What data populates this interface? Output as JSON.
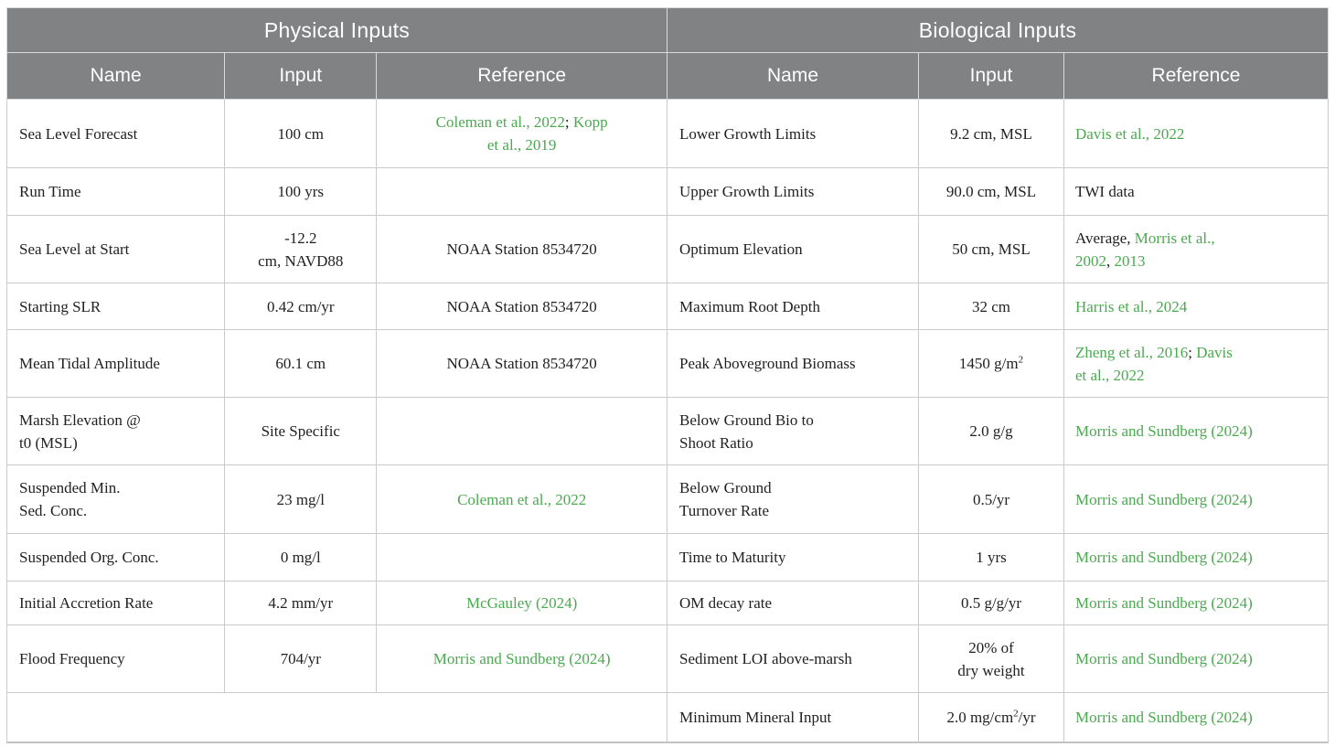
{
  "colors": {
    "header_bg": "#808283",
    "header_text": "#ffffff",
    "citation_green": "#4ba950",
    "body_text": "#212121",
    "border": "#cbcbcb"
  },
  "tables": [
    {
      "title": "Physical Inputs",
      "columns": [
        "Name",
        "Input",
        "Reference"
      ],
      "rows": [
        {
          "name": [
            {
              "t": "Sea Level Forecast"
            }
          ],
          "input": [
            {
              "t": "100 cm"
            }
          ],
          "ref": [
            {
              "t": "Coleman et al., 2022",
              "link": true
            },
            {
              "t": "; "
            },
            {
              "t": "Kopp",
              "link": true
            },
            {
              "br": true
            },
            {
              "t": "et al., 2019",
              "link": true
            }
          ]
        },
        {
          "name": [
            {
              "t": "Run Time"
            }
          ],
          "input": [
            {
              "t": "100 yrs"
            }
          ],
          "ref": []
        },
        {
          "name": [
            {
              "t": "Sea Level at Start"
            }
          ],
          "input": [
            {
              "t": "-12.2"
            },
            {
              "br": true
            },
            {
              "t": "cm, NAVD88"
            }
          ],
          "ref": [
            {
              "t": "NOAA Station 8534720"
            }
          ]
        },
        {
          "name": [
            {
              "t": "Starting SLR"
            }
          ],
          "input": [
            {
              "t": "0.42 cm/yr"
            }
          ],
          "ref": [
            {
              "t": "NOAA Station 8534720"
            }
          ]
        },
        {
          "name": [
            {
              "t": "Mean Tidal Amplitude"
            }
          ],
          "input": [
            {
              "t": "60.1 cm"
            }
          ],
          "ref": [
            {
              "t": "NOAA Station 8534720"
            }
          ]
        },
        {
          "name": [
            {
              "t": "Marsh Elevation @"
            },
            {
              "br": true
            },
            {
              "t": "t0 (MSL)"
            }
          ],
          "input": [
            {
              "t": "Site Specific"
            }
          ],
          "ref": []
        },
        {
          "name": [
            {
              "t": "Suspended Min."
            },
            {
              "br": true
            },
            {
              "t": "Sed. Conc."
            }
          ],
          "input": [
            {
              "t": "23 mg/l"
            }
          ],
          "ref": [
            {
              "t": "Coleman et al., 2022",
              "link": true
            }
          ]
        },
        {
          "name": [
            {
              "t": "Suspended Org. Conc."
            }
          ],
          "input": [
            {
              "t": "0 mg/l"
            }
          ],
          "ref": []
        },
        {
          "name": [
            {
              "t": "Initial Accretion Rate"
            }
          ],
          "input": [
            {
              "t": "4.2 mm/yr"
            }
          ],
          "ref": [
            {
              "t": "McGauley (2024)",
              "link": true
            }
          ]
        },
        {
          "name": [
            {
              "t": "Flood Frequency"
            }
          ],
          "input": [
            {
              "t": "704/yr"
            }
          ],
          "ref": [
            {
              "t": "Morris and Sundberg (2024)",
              "link": true
            }
          ]
        },
        {
          "merged": true
        }
      ]
    },
    {
      "title": "Biological Inputs",
      "columns": [
        "Name",
        "Input",
        "Reference"
      ],
      "rows": [
        {
          "name": [
            {
              "t": "Lower Growth Limits"
            }
          ],
          "input": [
            {
              "t": "9.2 cm, MSL"
            }
          ],
          "ref": [
            {
              "t": "Davis et al., 2022",
              "link": true
            }
          ]
        },
        {
          "name": [
            {
              "t": "Upper Growth Limits"
            }
          ],
          "input": [
            {
              "t": "90.0 cm, MSL"
            }
          ],
          "ref": [
            {
              "t": "TWI data"
            }
          ]
        },
        {
          "name": [
            {
              "t": "Optimum Elevation"
            }
          ],
          "input": [
            {
              "t": "50 cm, MSL"
            }
          ],
          "ref": [
            {
              "t": "Average, "
            },
            {
              "t": "Morris et al.,",
              "link": true
            },
            {
              "br": true
            },
            {
              "t": "2002",
              "link": true
            },
            {
              "t": ", "
            },
            {
              "t": "2013",
              "link": true
            }
          ]
        },
        {
          "name": [
            {
              "t": "Maximum Root Depth"
            }
          ],
          "input": [
            {
              "t": "32 cm"
            }
          ],
          "ref": [
            {
              "t": "Harris et al., 2024",
              "link": true
            }
          ]
        },
        {
          "name": [
            {
              "t": "Peak Aboveground Biomass"
            }
          ],
          "input": [
            {
              "t": "1450 g/m"
            },
            {
              "t": "2",
              "sup": true
            }
          ],
          "ref": [
            {
              "t": "Zheng et al., 2016",
              "link": true
            },
            {
              "t": "; "
            },
            {
              "t": "Davis",
              "link": true
            },
            {
              "br": true
            },
            {
              "t": "et al., 2022",
              "link": true
            }
          ]
        },
        {
          "name": [
            {
              "t": "Below Ground Bio to"
            },
            {
              "br": true
            },
            {
              "t": "Shoot Ratio"
            }
          ],
          "input": [
            {
              "t": "2.0 g/g"
            }
          ],
          "ref": [
            {
              "t": "Morris and Sundberg (2024)",
              "link": true
            }
          ]
        },
        {
          "name": [
            {
              "t": "Below Ground"
            },
            {
              "br": true
            },
            {
              "t": "Turnover Rate"
            }
          ],
          "input": [
            {
              "t": "0.5/yr"
            }
          ],
          "ref": [
            {
              "t": "Morris and Sundberg (2024)",
              "link": true
            }
          ]
        },
        {
          "name": [
            {
              "t": "Time to Maturity"
            }
          ],
          "input": [
            {
              "t": "1 yrs"
            }
          ],
          "ref": [
            {
              "t": "Morris and Sundberg (2024)",
              "link": true
            }
          ]
        },
        {
          "name": [
            {
              "t": "OM decay rate"
            }
          ],
          "input": [
            {
              "t": "0.5 g/g/yr"
            }
          ],
          "ref": [
            {
              "t": "Morris and Sundberg (2024)",
              "link": true
            }
          ]
        },
        {
          "name": [
            {
              "t": "Sediment LOI above-marsh"
            }
          ],
          "input": [
            {
              "t": "20% of"
            },
            {
              "br": true
            },
            {
              "t": "dry weight"
            }
          ],
          "ref": [
            {
              "t": "Morris and Sundberg (2024)",
              "link": true
            }
          ]
        },
        {
          "name": [
            {
              "t": "Minimum Mineral Input"
            }
          ],
          "input": [
            {
              "t": "2.0 mg/cm"
            },
            {
              "t": "2",
              "sup": true
            },
            {
              "t": "/yr"
            }
          ],
          "ref": [
            {
              "t": "Morris and Sundberg (2024)",
              "link": true
            }
          ]
        }
      ]
    }
  ]
}
